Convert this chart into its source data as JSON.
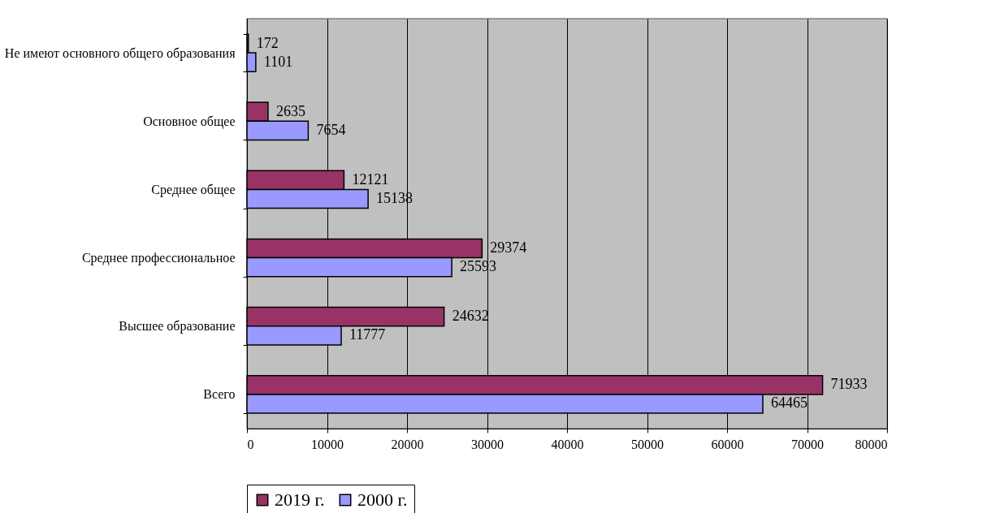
{
  "chart_data": {
    "type": "bar",
    "orientation": "horizontal",
    "categories": [
      "Не имеют основного общего образования",
      "Основное общее",
      "Среднее общее",
      "Среднее профессиональное",
      "Высшее образование",
      "Всего"
    ],
    "series": [
      {
        "name": "2019 г.",
        "color": "#993366",
        "values": [
          172,
          2635,
          12121,
          29374,
          24632,
          71933
        ]
      },
      {
        "name": "2000 г.",
        "color": "#9999ff",
        "values": [
          1101,
          7654,
          15138,
          25593,
          11777,
          64465
        ]
      }
    ],
    "xlim": [
      0,
      80000
    ],
    "xticks": [
      0,
      10000,
      20000,
      30000,
      40000,
      50000,
      60000,
      70000,
      80000
    ],
    "grid": "x",
    "legend": "bottom",
    "data_labels": true
  }
}
